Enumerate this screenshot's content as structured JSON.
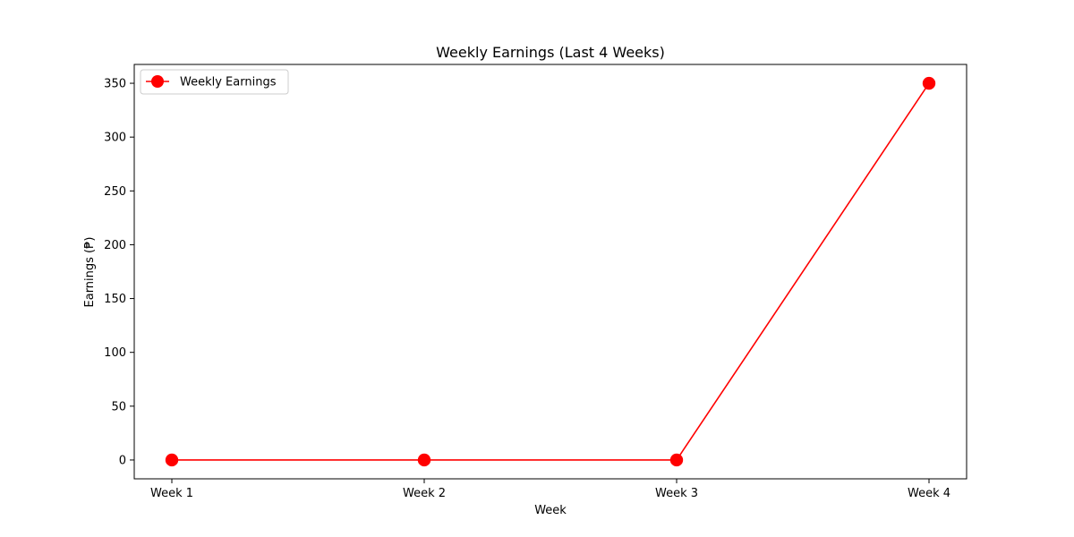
{
  "chart_data": {
    "type": "line",
    "title": "Weekly Earnings (Last 4 Weeks)",
    "xlabel": "Week",
    "ylabel": "Earnings (₱)",
    "categories": [
      "Week 1",
      "Week 2",
      "Week 3",
      "Week 4"
    ],
    "series": [
      {
        "name": "Weekly Earnings",
        "values": [
          0,
          0,
          0,
          350
        ],
        "color": "#ff0000",
        "marker": "circle"
      }
    ],
    "yticks": [
      0,
      50,
      100,
      150,
      200,
      250,
      300,
      350
    ],
    "ylim": [
      -17.5,
      367.5
    ],
    "grid": false,
    "legend_position": "upper-left"
  }
}
